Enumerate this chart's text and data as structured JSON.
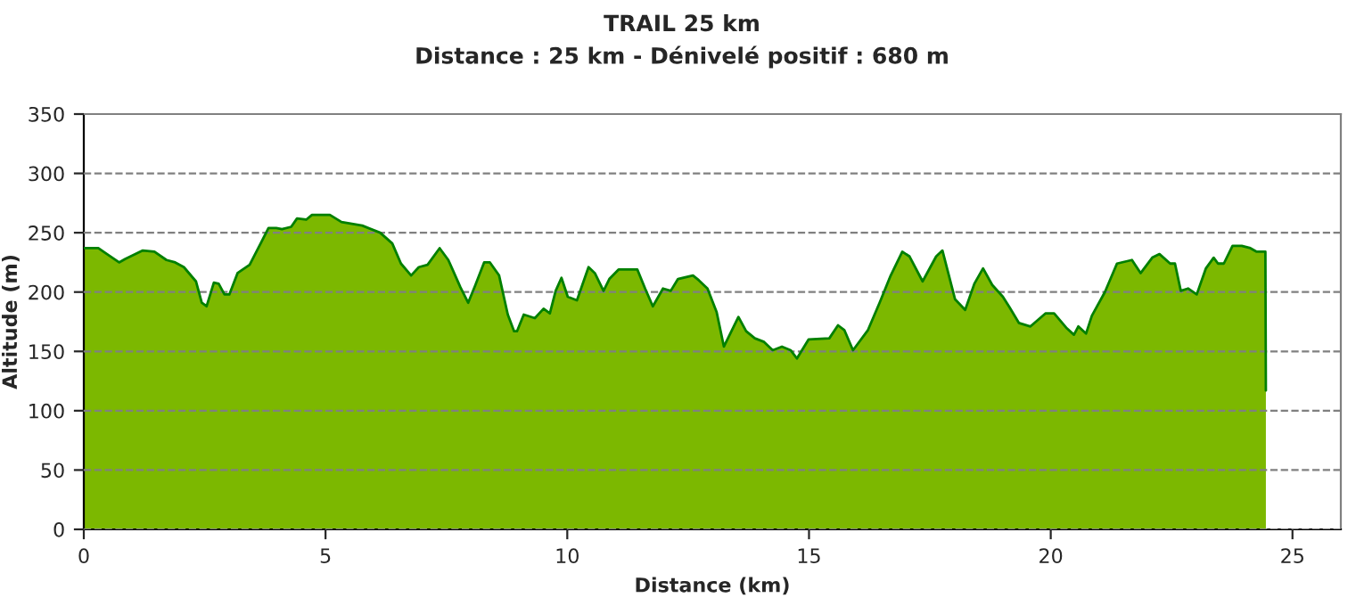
{
  "chart_data": {
    "type": "area",
    "title": "TRAIL 25 km",
    "subtitle": "Distance : 25 km - Dénivelé positif : 680 m",
    "xlabel": "Distance (km)",
    "ylabel": "Altitude (m)",
    "xlim": [
      0,
      26
    ],
    "xticks": [
      0,
      5,
      10,
      15,
      20,
      25
    ],
    "ylim": [
      0,
      350
    ],
    "yticks": [
      0,
      50,
      100,
      150,
      200,
      250,
      300,
      350
    ],
    "grid": "y",
    "line_style": "solid",
    "series": [
      {
        "color": "#7cb800",
        "x": [
          0,
          0.3,
          0.48,
          0.73,
          0.86,
          1.22,
          1.46,
          1.71,
          1.89,
          2.07,
          2.32,
          2.44,
          2.54,
          2.69,
          2.79,
          2.91,
          3.01,
          3.18,
          3.43,
          3.67,
          3.82,
          3.98,
          4.1,
          4.29,
          4.41,
          4.6,
          4.72,
          5.09,
          5.33,
          5.76,
          6.13,
          6.38,
          6.56,
          6.77,
          6.93,
          7.11,
          7.36,
          7.54,
          7.79,
          7.95,
          8.1,
          8.28,
          8.4,
          8.59,
          8.77,
          8.9,
          8.96,
          9.1,
          9.33,
          9.51,
          9.64,
          9.76,
          9.88,
          10.01,
          10.2,
          10.44,
          10.57,
          10.75,
          10.87,
          11.06,
          11.45,
          11.61,
          11.77,
          11.98,
          12.14,
          12.29,
          12.6,
          12.72,
          12.9,
          13.09,
          13.24,
          13.54,
          13.7,
          13.88,
          14.07,
          14.25,
          14.44,
          14.62,
          14.75,
          14.99,
          15.42,
          15.6,
          15.73,
          15.91,
          16.22,
          16.46,
          16.69,
          16.93,
          17.08,
          17.35,
          17.63,
          17.76,
          18.02,
          18.23,
          18.42,
          18.6,
          18.79,
          19.01,
          19.15,
          19.34,
          19.58,
          19.89,
          20.07,
          20.32,
          20.48,
          20.57,
          20.73,
          20.85,
          21.12,
          21.37,
          21.68,
          21.86,
          22.1,
          22.25,
          22.47,
          22.57,
          22.69,
          22.84,
          23.02,
          23.21,
          23.37,
          23.46,
          23.58,
          23.76,
          23.95,
          24.13,
          24.26,
          24.44,
          24.45
        ],
        "values": [
          237,
          237,
          232,
          225,
          228,
          235,
          234,
          227,
          225,
          221,
          209,
          191,
          188,
          208,
          207,
          198,
          198,
          216,
          223,
          242,
          254,
          254,
          253,
          255,
          262,
          261,
          265,
          265,
          259,
          256,
          250,
          241,
          224,
          214,
          221,
          223,
          237,
          227,
          204,
          191,
          206,
          225,
          225,
          214,
          181,
          167,
          167,
          181,
          178,
          186,
          182,
          201,
          212,
          196,
          193,
          221,
          216,
          201,
          211,
          219,
          219,
          203,
          188,
          203,
          201,
          211,
          214,
          210,
          203,
          183,
          154,
          179,
          167,
          161,
          158,
          151,
          154,
          151,
          144,
          160,
          161,
          172,
          168,
          151,
          168,
          191,
          214,
          234,
          230,
          209,
          230,
          235,
          194,
          185,
          207,
          220,
          206,
          196,
          187,
          174,
          171,
          182,
          182,
          170,
          164,
          171,
          165,
          180,
          200,
          224,
          227,
          216,
          229,
          232,
          224,
          224,
          201,
          203,
          198,
          220,
          229,
          224,
          224,
          239,
          239,
          237,
          234,
          234,
          117
        ]
      }
    ]
  }
}
